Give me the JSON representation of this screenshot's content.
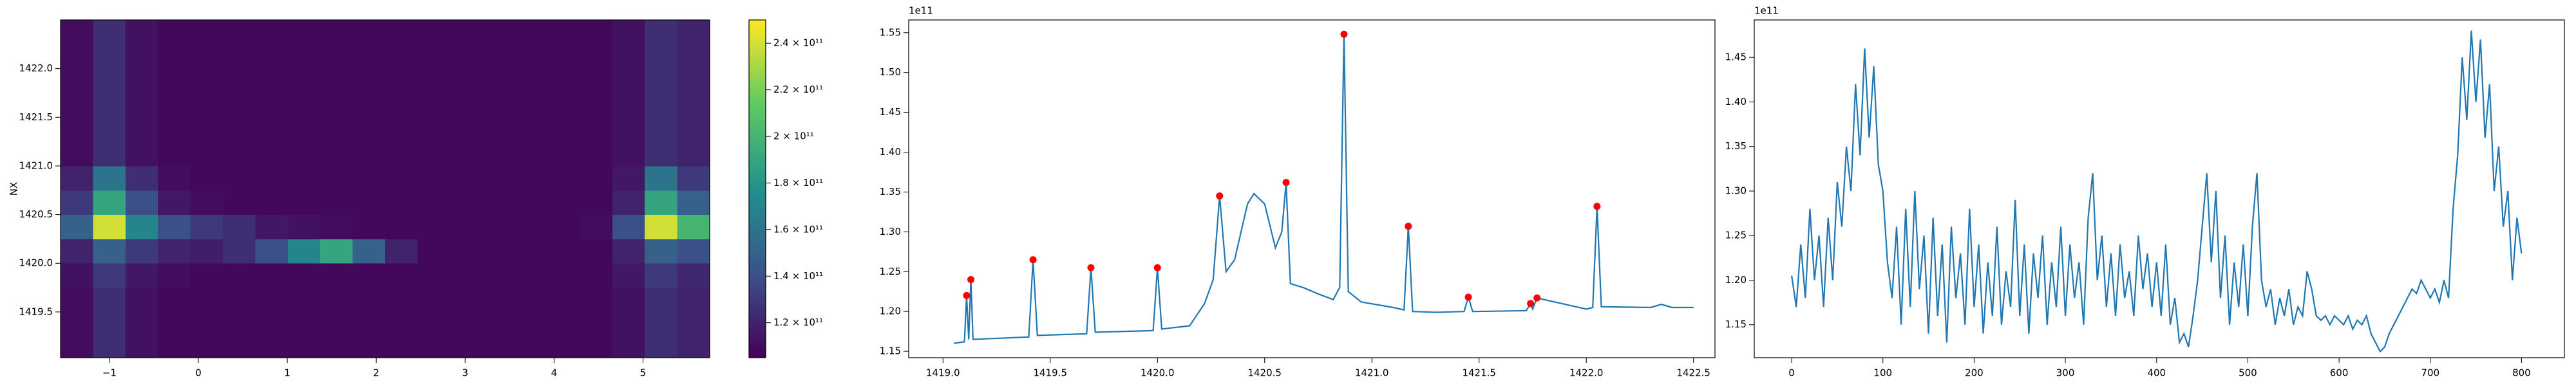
{
  "chart_data": [
    {
      "type": "heatmap",
      "ylabel": "NX",
      "colormap": "viridis",
      "x_edges": [
        -1.55,
        -1.185,
        -0.82,
        -0.455,
        -0.09,
        0.275,
        0.64,
        1.005,
        1.37,
        1.735,
        2.1,
        2.465,
        2.83,
        3.195,
        3.56,
        3.925,
        4.29,
        4.655,
        5.02,
        5.385,
        5.75
      ],
      "y_edges": [
        1419.03,
        1419.25,
        1419.5,
        1419.75,
        1420.0,
        1420.25,
        1420.5,
        1420.75,
        1421.0,
        1421.25,
        1421.5,
        1421.75,
        1422.0,
        1422.25,
        1422.5
      ],
      "values": [
        [
          110000000000.0,
          125000000000.0,
          112000000000.0,
          108000000000.0,
          108000000000.0,
          108000000000.0,
          108000000000.0,
          108000000000.0,
          108000000000.0,
          108000000000.0,
          108000000000.0,
          108000000000.0,
          108000000000.0,
          108000000000.0,
          108000000000.0,
          108000000000.0,
          108000000000.0,
          112000000000.0,
          125000000000.0,
          120000000000.0
        ],
        [
          110000000000.0,
          125000000000.0,
          112000000000.0,
          108000000000.0,
          108000000000.0,
          108000000000.0,
          108000000000.0,
          108000000000.0,
          108000000000.0,
          108000000000.0,
          108000000000.0,
          108000000000.0,
          108000000000.0,
          108000000000.0,
          108000000000.0,
          108000000000.0,
          108000000000.0,
          112000000000.0,
          125000000000.0,
          120000000000.0
        ],
        [
          110000000000.0,
          125000000000.0,
          112000000000.0,
          108000000000.0,
          108000000000.0,
          108000000000.0,
          108000000000.0,
          108000000000.0,
          108000000000.0,
          108000000000.0,
          108000000000.0,
          108000000000.0,
          108000000000.0,
          108000000000.0,
          108000000000.0,
          108000000000.0,
          108000000000.0,
          112000000000.0,
          125000000000.0,
          120000000000.0
        ],
        [
          112000000000.0,
          130000000000.0,
          115000000000.0,
          110000000000.0,
          108000000000.0,
          108000000000.0,
          108000000000.0,
          108000000000.0,
          108000000000.0,
          108000000000.0,
          108000000000.0,
          108000000000.0,
          108000000000.0,
          108000000000.0,
          108000000000.0,
          108000000000.0,
          108000000000.0,
          115000000000.0,
          130000000000.0,
          122000000000.0
        ],
        [
          120000000000.0,
          150000000000.0,
          130000000000.0,
          120000000000.0,
          118000000000.0,
          125000000000.0,
          140000000000.0,
          170000000000.0,
          190000000000.0,
          150000000000.0,
          120000000000.0,
          108000000000.0,
          108000000000.0,
          108000000000.0,
          108000000000.0,
          108000000000.0,
          108000000000.0,
          120000000000.0,
          150000000000.0,
          140000000000.0
        ],
        [
          150000000000.0,
          240000000000.0,
          170000000000.0,
          140000000000.0,
          130000000000.0,
          125000000000.0,
          115000000000.0,
          112000000000.0,
          110000000000.0,
          108000000000.0,
          108000000000.0,
          108000000000.0,
          108000000000.0,
          108000000000.0,
          108000000000.0,
          108000000000.0,
          110000000000.0,
          140000000000.0,
          240000000000.0,
          200000000000.0
        ],
        [
          130000000000.0,
          190000000000.0,
          140000000000.0,
          115000000000.0,
          110000000000.0,
          108000000000.0,
          108000000000.0,
          108000000000.0,
          108000000000.0,
          108000000000.0,
          108000000000.0,
          108000000000.0,
          108000000000.0,
          108000000000.0,
          108000000000.0,
          108000000000.0,
          108000000000.0,
          120000000000.0,
          190000000000.0,
          150000000000.0
        ],
        [
          120000000000.0,
          160000000000.0,
          125000000000.0,
          110000000000.0,
          108000000000.0,
          108000000000.0,
          108000000000.0,
          108000000000.0,
          108000000000.0,
          108000000000.0,
          108000000000.0,
          108000000000.0,
          108000000000.0,
          108000000000.0,
          108000000000.0,
          108000000000.0,
          108000000000.0,
          115000000000.0,
          160000000000.0,
          130000000000.0
        ],
        [
          110000000000.0,
          125000000000.0,
          112000000000.0,
          108000000000.0,
          108000000000.0,
          108000000000.0,
          108000000000.0,
          108000000000.0,
          108000000000.0,
          108000000000.0,
          108000000000.0,
          108000000000.0,
          108000000000.0,
          108000000000.0,
          108000000000.0,
          108000000000.0,
          108000000000.0,
          112000000000.0,
          125000000000.0,
          120000000000.0
        ],
        [
          110000000000.0,
          125000000000.0,
          112000000000.0,
          108000000000.0,
          108000000000.0,
          108000000000.0,
          108000000000.0,
          108000000000.0,
          108000000000.0,
          108000000000.0,
          108000000000.0,
          108000000000.0,
          108000000000.0,
          108000000000.0,
          108000000000.0,
          108000000000.0,
          108000000000.0,
          112000000000.0,
          125000000000.0,
          120000000000.0
        ],
        [
          110000000000.0,
          125000000000.0,
          112000000000.0,
          108000000000.0,
          108000000000.0,
          108000000000.0,
          108000000000.0,
          108000000000.0,
          108000000000.0,
          108000000000.0,
          108000000000.0,
          108000000000.0,
          108000000000.0,
          108000000000.0,
          108000000000.0,
          108000000000.0,
          108000000000.0,
          112000000000.0,
          125000000000.0,
          120000000000.0
        ],
        [
          110000000000.0,
          125000000000.0,
          112000000000.0,
          108000000000.0,
          108000000000.0,
          108000000000.0,
          108000000000.0,
          108000000000.0,
          108000000000.0,
          108000000000.0,
          108000000000.0,
          108000000000.0,
          108000000000.0,
          108000000000.0,
          108000000000.0,
          108000000000.0,
          108000000000.0,
          112000000000.0,
          125000000000.0,
          120000000000.0
        ],
        [
          110000000000.0,
          125000000000.0,
          112000000000.0,
          108000000000.0,
          108000000000.0,
          108000000000.0,
          108000000000.0,
          108000000000.0,
          108000000000.0,
          108000000000.0,
          108000000000.0,
          108000000000.0,
          108000000000.0,
          108000000000.0,
          108000000000.0,
          108000000000.0,
          108000000000.0,
          112000000000.0,
          125000000000.0,
          120000000000.0
        ],
        [
          110000000000.0,
          125000000000.0,
          112000000000.0,
          108000000000.0,
          108000000000.0,
          108000000000.0,
          108000000000.0,
          108000000000.0,
          108000000000.0,
          108000000000.0,
          108000000000.0,
          108000000000.0,
          108000000000.0,
          108000000000.0,
          108000000000.0,
          108000000000.0,
          108000000000.0,
          112000000000.0,
          125000000000.0,
          120000000000.0
        ]
      ],
      "xlim": [
        -1.55,
        5.75
      ],
      "ylim": [
        1419.03,
        1422.5
      ],
      "xticks": [
        {
          "value": -1,
          "label": "−1"
        },
        0,
        1,
        2,
        3,
        4,
        5
      ],
      "yticks": [
        1419.5,
        {
          "value": 1420,
          "label": "1420.0"
        },
        1420.5,
        {
          "value": 1421,
          "label": "1421.0"
        },
        1421.5,
        {
          "value": 1422,
          "label": "1422.0"
        }
      ],
      "clim": [
        105000000000.0,
        250000000000.0
      ],
      "cticks": [
        {
          "value": 120000000000.0,
          "label": "1.2 × 10¹¹"
        },
        {
          "value": 140000000000.0,
          "label": "1.4 × 10¹¹"
        },
        {
          "value": 160000000000.0,
          "label": "1.6 × 10¹¹"
        },
        {
          "value": 180000000000.0,
          "label": "1.8 × 10¹¹"
        },
        {
          "value": 200000000000.0,
          "label": "2 × 10¹¹"
        },
        {
          "value": 220000000000.0,
          "label": "2.2 × 10¹¹"
        },
        {
          "value": 240000000000.0,
          "label": "2.4 × 10¹¹"
        }
      ]
    },
    {
      "type": "line",
      "y_offset_label": "1e11",
      "color": "#1f77b4",
      "x": [
        1419.05,
        1419.1,
        1419.11,
        1419.12,
        1419.13,
        1419.14,
        1419.4,
        1419.42,
        1419.44,
        1419.67,
        1419.69,
        1419.71,
        1419.98,
        1420.0,
        1420.02,
        1420.15,
        1420.22,
        1420.26,
        1420.29,
        1420.32,
        1420.36,
        1420.42,
        1420.45,
        1420.5,
        1420.55,
        1420.58,
        1420.6,
        1420.62,
        1420.68,
        1420.75,
        1420.82,
        1420.85,
        1420.87,
        1420.89,
        1420.95,
        1421.1,
        1421.15,
        1421.17,
        1421.19,
        1421.3,
        1421.43,
        1421.45,
        1421.47,
        1421.72,
        1421.74,
        1421.75,
        1421.77,
        1422.0,
        1422.03,
        1422.05,
        1422.07,
        1422.3,
        1422.35,
        1422.4,
        1422.5
      ],
      "values": [
        1.16,
        1.162,
        1.22,
        1.165,
        1.24,
        1.165,
        1.168,
        1.265,
        1.17,
        1.172,
        1.255,
        1.174,
        1.176,
        1.255,
        1.178,
        1.182,
        1.21,
        1.24,
        1.345,
        1.25,
        1.265,
        1.335,
        1.348,
        1.335,
        1.28,
        1.3,
        1.362,
        1.235,
        1.23,
        1.222,
        1.215,
        1.23,
        1.548,
        1.225,
        1.212,
        1.205,
        1.202,
        1.307,
        1.2,
        1.199,
        1.2,
        1.218,
        1.2,
        1.201,
        1.21,
        1.203,
        1.217,
        1.203,
        1.205,
        1.332,
        1.206,
        1.205,
        1.209,
        1.205,
        1.205
      ],
      "peaks": {
        "color": "#ff0000",
        "x": [
          1419.11,
          1419.13,
          1419.42,
          1419.69,
          1420.0,
          1420.29,
          1420.6,
          1420.87,
          1421.17,
          1421.45,
          1421.74,
          1421.77,
          1422.05
        ],
        "values": [
          1.22,
          1.24,
          1.265,
          1.255,
          1.255,
          1.345,
          1.362,
          1.548,
          1.307,
          1.218,
          1.21,
          1.217,
          1.332
        ]
      },
      "xlim": [
        1418.84,
        1422.6
      ],
      "ylim": [
        1.142,
        1.566
      ],
      "xticks": [
        {
          "value": 1419,
          "label": "1419.0"
        },
        1419.5,
        {
          "value": 1420,
          "label": "1420.0"
        },
        1420.5,
        {
          "value": 1421,
          "label": "1421.0"
        },
        1421.5,
        {
          "value": 1422,
          "label": "1422.0"
        },
        1422.5
      ],
      "yticks": [
        1.15,
        {
          "value": 1.2,
          "label": "1.20"
        },
        1.25,
        {
          "value": 1.3,
          "label": "1.30"
        },
        1.35,
        {
          "value": 1.4,
          "label": "1.40"
        },
        1.45,
        {
          "value": 1.5,
          "label": "1.50"
        },
        1.55
      ]
    },
    {
      "type": "line",
      "y_offset_label": "1e11",
      "color": "#1f77b4",
      "x": [
        0,
        5,
        10,
        15,
        20,
        25,
        30,
        35,
        40,
        45,
        50,
        55,
        60,
        65,
        70,
        75,
        80,
        85,
        90,
        95,
        100,
        105,
        110,
        115,
        120,
        125,
        130,
        135,
        140,
        145,
        150,
        155,
        160,
        165,
        170,
        175,
        180,
        185,
        190,
        195,
        200,
        205,
        210,
        215,
        220,
        225,
        230,
        235,
        240,
        245,
        250,
        255,
        260,
        265,
        270,
        275,
        280,
        285,
        290,
        295,
        300,
        305,
        310,
        315,
        320,
        325,
        330,
        335,
        340,
        345,
        350,
        355,
        360,
        365,
        370,
        375,
        380,
        385,
        390,
        395,
        400,
        405,
        410,
        415,
        420,
        425,
        430,
        435,
        440,
        445,
        450,
        455,
        460,
        465,
        470,
        475,
        480,
        485,
        490,
        495,
        500,
        505,
        510,
        515,
        520,
        525,
        530,
        535,
        540,
        545,
        550,
        555,
        560,
        565,
        570,
        575,
        580,
        585,
        590,
        595,
        600,
        605,
        610,
        615,
        620,
        625,
        630,
        635,
        640,
        645,
        650,
        655,
        660,
        665,
        670,
        675,
        680,
        685,
        690,
        695,
        700,
        705,
        710,
        715,
        720,
        725,
        730,
        735,
        740,
        745,
        750,
        755,
        760,
        765,
        770,
        775,
        780,
        785,
        790,
        795,
        800
      ],
      "values": [
        1.205,
        1.17,
        1.24,
        1.18,
        1.28,
        1.2,
        1.25,
        1.17,
        1.27,
        1.2,
        1.31,
        1.26,
        1.35,
        1.3,
        1.42,
        1.34,
        1.46,
        1.36,
        1.44,
        1.33,
        1.3,
        1.22,
        1.18,
        1.26,
        1.15,
        1.28,
        1.17,
        1.3,
        1.19,
        1.25,
        1.14,
        1.27,
        1.16,
        1.24,
        1.13,
        1.26,
        1.18,
        1.23,
        1.15,
        1.28,
        1.17,
        1.24,
        1.14,
        1.22,
        1.16,
        1.26,
        1.15,
        1.21,
        1.17,
        1.29,
        1.16,
        1.24,
        1.14,
        1.23,
        1.18,
        1.25,
        1.15,
        1.22,
        1.17,
        1.26,
        1.16,
        1.24,
        1.18,
        1.22,
        1.15,
        1.27,
        1.32,
        1.2,
        1.25,
        1.17,
        1.23,
        1.16,
        1.24,
        1.18,
        1.21,
        1.16,
        1.25,
        1.19,
        1.23,
        1.17,
        1.22,
        1.16,
        1.24,
        1.15,
        1.18,
        1.13,
        1.14,
        1.125,
        1.16,
        1.2,
        1.26,
        1.32,
        1.22,
        1.3,
        1.18,
        1.25,
        1.15,
        1.22,
        1.17,
        1.24,
        1.16,
        1.26,
        1.32,
        1.2,
        1.17,
        1.19,
        1.15,
        1.18,
        1.16,
        1.19,
        1.15,
        1.17,
        1.16,
        1.21,
        1.19,
        1.16,
        1.155,
        1.16,
        1.15,
        1.16,
        1.155,
        1.15,
        1.16,
        1.145,
        1.155,
        1.15,
        1.16,
        1.14,
        1.13,
        1.12,
        1.125,
        1.14,
        1.15,
        1.16,
        1.17,
        1.18,
        1.19,
        1.185,
        1.2,
        1.19,
        1.18,
        1.19,
        1.175,
        1.2,
        1.18,
        1.28,
        1.34,
        1.45,
        1.38,
        1.48,
        1.4,
        1.47,
        1.36,
        1.42,
        1.3,
        1.35,
        1.26,
        1.3,
        1.2,
        1.27,
        1.23
      ],
      "xlim": [
        -41,
        847
      ],
      "ylim": [
        1.113,
        1.492
      ],
      "xticks": [
        0,
        100,
        200,
        300,
        400,
        500,
        600,
        700,
        800
      ],
      "yticks": [
        1.15,
        {
          "value": 1.2,
          "label": "1.20"
        },
        1.25,
        {
          "value": 1.3,
          "label": "1.30"
        },
        1.35,
        {
          "value": 1.4,
          "label": "1.40"
        },
        1.45
      ]
    }
  ]
}
